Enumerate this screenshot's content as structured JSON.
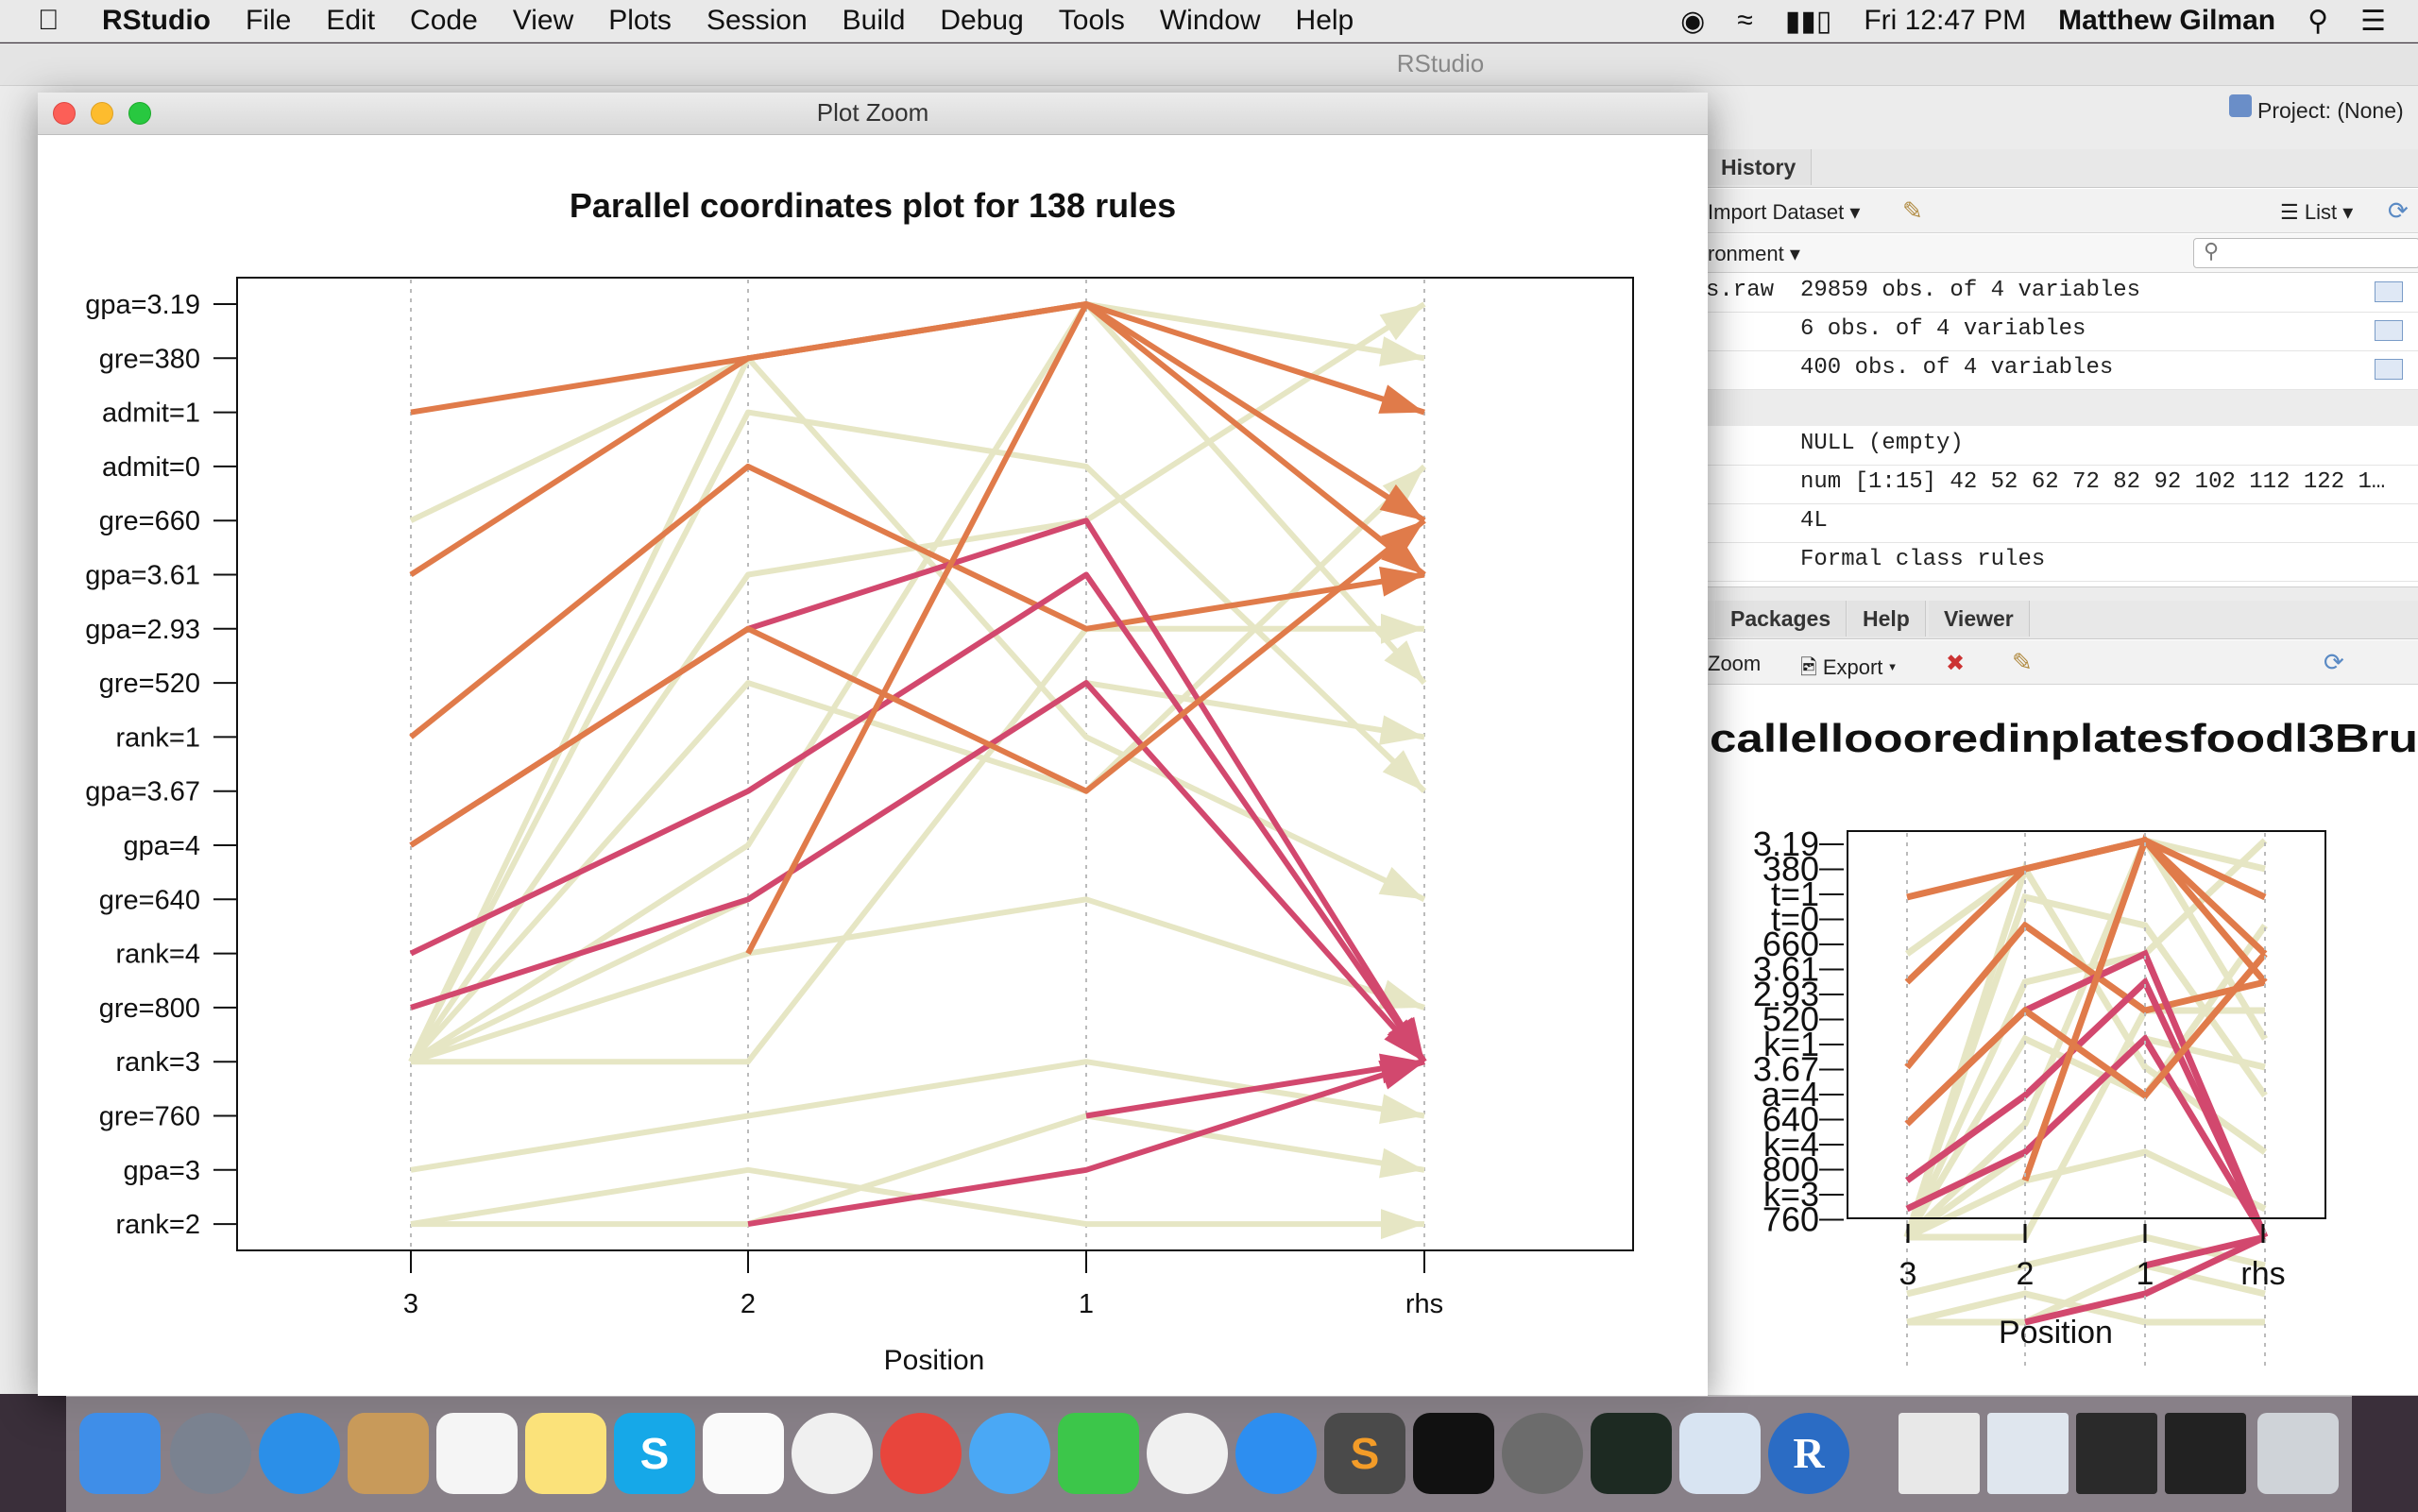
{
  "menubar": {
    "app_name": "RStudio",
    "items": [
      "File",
      "Edit",
      "Code",
      "View",
      "Plots",
      "Session",
      "Build",
      "Debug",
      "Tools",
      "Window",
      "Help"
    ],
    "clock": "Fri 12:47 PM",
    "user": "Matthew Gilman"
  },
  "rstudio": {
    "window_title": "RStudio",
    "project": "Project: (None)",
    "top_pane": {
      "tab_history": "History",
      "import_dataset": "Import Dataset",
      "list_view": "List",
      "environment_dropdown": "ronment",
      "rows": [
        {
          "name": "s.raw",
          "value": "29859 obs. of 4 variables"
        },
        {
          "name": "",
          "value": "6 obs. of 4 variables"
        },
        {
          "name": "",
          "value": "400 obs. of 4 variables"
        },
        {
          "name": "",
          "value": "NULL (empty)"
        },
        {
          "name": "",
          "value": "num [1:15] 42 52 62 72 82 92 102 112 122 1…"
        },
        {
          "name": "",
          "value": "4L"
        },
        {
          "name": "",
          "value": "Formal class rules"
        }
      ]
    },
    "bottom_pane": {
      "tabs": [
        "Packages",
        "Help",
        "Viewer"
      ],
      "zoom": "Zoom",
      "export": "Export",
      "mini_title": "callelloooredinplatesfoodl3Bru",
      "mini_x_ticks": [
        "3",
        "2",
        "1",
        "rhs"
      ],
      "mini_y_labels": [
        "3.19",
        "380",
        "t=1",
        "t=0",
        "660",
        "3.61",
        "2.93",
        "520",
        "k=1",
        "3.67",
        "a=4",
        "640",
        "k=4",
        "800",
        "k=3",
        "760"
      ],
      "mini_xlabel": "Position"
    }
  },
  "zoom_window": {
    "title": "Plot Zoom"
  },
  "chart_data": {
    "type": "line",
    "title": "Parallel coordinates plot for 138 rules",
    "xlabel": "Position",
    "ylabel": "",
    "x_ticks": [
      "3",
      "2",
      "1",
      "rhs"
    ],
    "y_labels": [
      "gpa=3.19",
      "gre=380",
      "admit=1",
      "admit=0",
      "gre=660",
      "gpa=3.61",
      "gpa=2.93",
      "gre=520",
      "rank=1",
      "gpa=3.67",
      "gpa=4",
      "gre=640",
      "rank=4",
      "gre=800",
      "rank=3",
      "gre=760",
      "gpa=3",
      "rank=2"
    ],
    "color_scale": {
      "low_lift": "#e6e6c4",
      "mid_lift": "#e07b4a",
      "high_lift": "#d2486e"
    },
    "grid": true,
    "paths_note_series": [
      {
        "color": "#e07b4a",
        "path": [
          "admit=1",
          "gre=380",
          "gpa=3.19",
          "admit=1"
        ]
      },
      {
        "color": "#e07b4a",
        "path": [
          "gpa=3.61",
          "gre=380",
          "gpa=3.19",
          "gre=660"
        ]
      },
      {
        "color": "#e07b4a",
        "path": [
          "rank=1",
          "admit=0",
          "gpa=2.93",
          "gpa=3.61"
        ]
      },
      {
        "color": "#d2486e",
        "path": [
          "gpa=4",
          "gpa=2.93",
          "gre=660",
          "rank=3"
        ]
      },
      {
        "color": "#d2486e",
        "path": [
          "rank=4",
          "gpa=3.67",
          "gpa=3.61",
          "rank=3"
        ]
      },
      {
        "color": "#d2486e",
        "path": [
          "gre=800",
          "gre=640",
          "gre=520",
          "rank=3"
        ]
      },
      {
        "color": "#e07b4a",
        "path": [
          "gpa=4",
          "gpa=2.93",
          "gpa=3.67",
          "gre=660"
        ]
      },
      {
        "color": "#e07b4a",
        "path": [
          "rank=4",
          "gpa=3.19",
          "gpa=3.61"
        ]
      },
      {
        "color": "#d2486e",
        "path": [
          "gre=760",
          "rank=3"
        ]
      },
      {
        "color": "#d2486e",
        "path": [
          "rank=2",
          "gpa=3",
          "rank=3"
        ]
      },
      {
        "color": "#e6e6c4",
        "path": [
          "gre=660",
          "gre=380",
          "gpa=3.19",
          "gre=380"
        ]
      },
      {
        "color": "#e6e6c4",
        "path": [
          "rank=3",
          "gpa=3.61",
          "gre=660",
          "gpa=3.19"
        ]
      },
      {
        "color": "#e6e6c4",
        "path": [
          "rank=3",
          "gre=520",
          "gpa=3.67",
          "admit=0"
        ]
      },
      {
        "color": "#e6e6c4",
        "path": [
          "rank=3",
          "rank=3",
          "gpa=2.93",
          "gpa=2.93"
        ]
      },
      {
        "color": "#e6e6c4",
        "path": [
          "gpa=3",
          "gre=760",
          "rank=3",
          "gre=760"
        ]
      },
      {
        "color": "#e6e6c4",
        "path": [
          "rank=2",
          "rank=2",
          "gre=760",
          "gpa=3"
        ]
      },
      {
        "color": "#e6e6c4",
        "path": [
          "rank=3",
          "gre=640",
          "gre=520",
          "rank=1"
        ]
      },
      {
        "color": "#e6e6c4",
        "path": [
          "rank=3",
          "admit=1",
          "admit=0",
          "gpa=3.67"
        ]
      },
      {
        "color": "#e6e6c4",
        "path": [
          "rank=2",
          "gpa=3",
          "rank=2",
          "rank=2"
        ]
      },
      {
        "color": "#e6e6c4",
        "path": [
          "rank=3",
          "rank=4",
          "gre=640",
          "gre=800"
        ]
      },
      {
        "color": "#e6e6c4",
        "path": [
          "rank=3",
          "gre=380",
          "rank=1",
          "gre=640"
        ]
      },
      {
        "color": "#e6e6c4",
        "path": [
          "rank=3",
          "gpa=4",
          "gpa=3.19",
          "gre=520"
        ]
      }
    ]
  }
}
